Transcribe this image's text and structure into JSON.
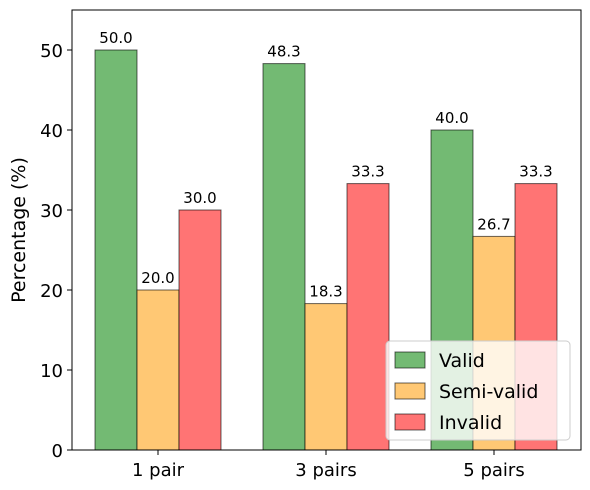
{
  "chart_data": {
    "type": "bar",
    "categories": [
      "1 pair",
      "3 pairs",
      "5 pairs"
    ],
    "series": [
      {
        "name": "Valid",
        "values": [
          50.0,
          48.3,
          40.0
        ],
        "labels": [
          "50.0",
          "48.3",
          "40.0"
        ],
        "color": "#4ca64c"
      },
      {
        "name": "Semi-valid",
        "values": [
          20.0,
          18.3,
          26.7
        ],
        "labels": [
          "20.0",
          "18.3",
          "26.7"
        ],
        "color": "#ffb84d"
      },
      {
        "name": "Invalid",
        "values": [
          30.0,
          33.3,
          33.3
        ],
        "labels": [
          "30.0",
          "33.3",
          "33.3"
        ],
        "color": "#ff4d4d"
      }
    ],
    "title": "",
    "xlabel": "",
    "ylabel": "Percentage (%)",
    "ylim": [
      0,
      55
    ],
    "yticks": [
      0,
      10,
      20,
      30,
      40,
      50
    ],
    "grid": false,
    "legend_position": "lower-right"
  }
}
